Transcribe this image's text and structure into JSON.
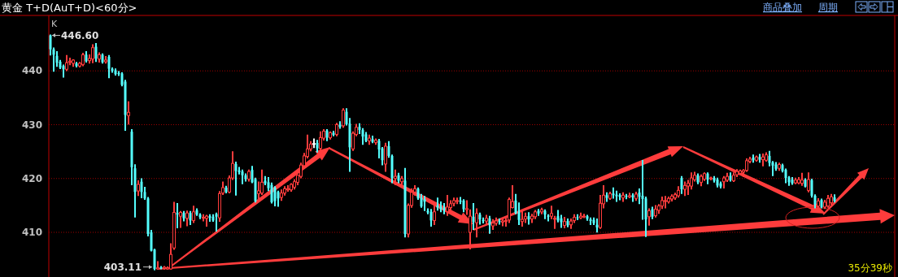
{
  "chart_data": {
    "type": "candlestick",
    "title": "黄金 T+D(AuT+D)<60分>",
    "colors": [
      "#54ffff",
      "#54ffff",
      "#54ffff",
      "#54ffff",
      "#54ffff",
      "#ff3c3c",
      "#ff3c3c",
      "#ff3c3c",
      "#54ffff",
      "#ff3c3c",
      "#ff3c3c",
      "#54ffff",
      "#ff3c3c",
      "#ff3c3c",
      "#54ffff",
      "#ff3c3c",
      "#54ffff",
      "#ff3c3c",
      "#54ffff",
      "#54ffff",
      "#54ffff",
      "#54ffff",
      "#54ffff",
      "#54ffff",
      "#ff3c3c",
      "#54ffff",
      "#54ffff",
      "#ff3c3c",
      "#54ffff",
      "#54ffff",
      "#54ffff",
      "#54ffff",
      "#54ffff",
      "#ff3c3c",
      "#54ffff",
      "#ff3c3c",
      "#ff3c3c",
      "#ff3c3c",
      "#ff3c3c",
      "#54ffff",
      "#ff3c3c",
      "#54ffff",
      "#ff3c3c",
      "#54ffff",
      "#ff3c3c",
      "#54ffff",
      "#54ffff",
      "#ff3c3c",
      "#ff3c3c",
      "#54ffff",
      "#54ffff",
      "#54ffff",
      "#ff3c3c",
      "#ff3c3c",
      "#54ffff",
      "#ff3c3c",
      "#ff3c3c",
      "#54ffff",
      "#54ffff",
      "#54ffff",
      "#54ffff",
      "#ff3c3c",
      "#54ffff",
      "#54ffff",
      "#ff3c3c",
      "#ff3c3c",
      "#54ffff",
      "#54ffff",
      "#54ffff",
      "#54ffff",
      "#54ffff",
      "#ff3c3c",
      "#ff3c3c",
      "#ff3c3c",
      "#ff3c3c",
      "#ff3c3c",
      "#ff3c3c",
      "#ff3c3c",
      "#ff3c3c",
      "#ff3c3c",
      "#ff3c3c",
      "#ffffff",
      "#54ffff",
      "#ff3c3c",
      "#ff3c3c",
      "#54ffff",
      "#ff3c3c",
      "#54ffff",
      "#ff3c3c",
      "#54ffff",
      "#ff3c3c",
      "#54ffff",
      "#54ffff",
      "#ff3c3c",
      "#ff3c3c",
      "#54ffff",
      "#54ffff",
      "#54ffff",
      "#ff3c3c",
      "#54ffff",
      "#ff3c3c",
      "#54ffff",
      "#54ffff",
      "#ff3c3c",
      "#54ffff",
      "#54ffff",
      "#ff3c3c",
      "#54ffff",
      "#ff3c3c",
      "#54ffff",
      "#ff3c3c",
      "#ff3c3c",
      "#ff3c3c",
      "#54ffff",
      "#54ffff",
      "#54ffff",
      "#54ffff",
      "#54ffff",
      "#ff3c3c",
      "#54ffff",
      "#54ffff",
      "#54ffff",
      "#ff3c3c",
      "#ff3c3c",
      "#ff3c3c",
      "#ff3c3c",
      "#54ffff",
      "#54ffff",
      "#ff3c3c",
      "#ff3c3c",
      "#54ffff",
      "#ff3c3c",
      "#54ffff",
      "#54ffff",
      "#ff3c3c",
      "#54ffff",
      "#ff3c3c",
      "#ff3c3c",
      "#54ffff",
      "#ff3c3c",
      "#ff3c3c",
      "#ff3c3c",
      "#ff3c3c",
      "#54ffff",
      "#54ffff",
      "#ff3c3c",
      "#ff3c3c",
      "#54ffff",
      "#ff3c3c",
      "#ff3c3c",
      "#54ffff",
      "#ff3c3c",
      "#54ffff",
      "#54ffff",
      "#ff3c3c",
      "#ff3c3c",
      "#54ffff",
      "#54ffff",
      "#ff3c3c",
      "#54ffff",
      "#ff3c3c",
      "#ff3c3c",
      "#54ffff",
      "#ff3c3c",
      "#ff3c3c",
      "#54ffff",
      "#54ffff",
      "#54ffff",
      "#54ffff",
      "#ff3c3c",
      "#ff3c3c",
      "#54ffff",
      "#ff3c3c",
      "#54ffff",
      "#54ffff",
      "#54ffff",
      "#ff3c3c",
      "#54ffff",
      "#ff3c3c",
      "#54ffff",
      "#ff3c3c",
      "#54ffff",
      "#54ffff",
      "#54ffff",
      "#ff3c3c",
      "#54ffff",
      "#ff3c3c",
      "#ff3c3c",
      "#ff3c3c",
      "#ff3c3c",
      "#ff3c3c",
      "#ff3c3c",
      "#ff3c3c",
      "#ff3c3c",
      "#54ffff",
      "#ff3c3c",
      "#ff3c3c",
      "#ff3c3c",
      "#ff3c3c",
      "#54ffff",
      "#ff3c3c",
      "#ff3c3c",
      "#54ffff",
      "#ff3c3c",
      "#54ffff",
      "#54ffff",
      "#54ffff",
      "#ff3c3c",
      "#ff3c3c",
      "#54ffff",
      "#ff3c3c",
      "#ff3c3c",
      "#ff3c3c",
      "#ff3c3c",
      "#ff3c3c",
      "#ff3c3c",
      "#54ffff",
      "#ff3c3c",
      "#54ffff",
      "#ff3c3c",
      "#ff3c3c",
      "#54ffff",
      "#54ffff",
      "#54ffff",
      "#ff3c3c",
      "#54ffff",
      "#54ffff",
      "#54ffff",
      "#54ffff",
      "#ff3c3c",
      "#ff3c3c",
      "#ff3c3c",
      "#54ffff",
      "#ff3c3c",
      "#54ffff",
      "#54ffff",
      "#ff3c3c",
      "#54ffff",
      "#ff3c3c",
      "#ff3c3c",
      "#ff3c3c",
      "#54ffff"
    ],
    "ylim": [
      401.7,
      450.3
    ],
    "yticks": [
      410,
      420,
      430,
      440
    ],
    "grid": "y",
    "annotations": [
      "K",
      "446.60",
      "403.11",
      "35分39秒",
      "商品叠加",
      "周期"
    ],
    "categories": [
      null,
      null,
      null,
      null,
      null,
      null,
      null,
      null,
      null,
      null,
      null,
      null,
      null,
      null,
      null,
      null,
      null,
      null,
      null,
      null,
      null,
      null,
      null,
      null,
      null,
      null,
      null,
      null,
      null,
      null,
      null,
      null,
      null,
      null,
      null,
      null,
      null,
      null,
      null,
      null,
      null,
      null,
      null,
      null,
      null,
      null,
      null,
      null,
      null,
      null,
      null,
      null,
      null,
      null,
      null,
      null,
      null,
      null,
      null,
      null,
      null,
      null,
      null,
      null,
      null,
      null,
      null,
      null,
      null,
      null,
      null,
      null,
      null,
      null,
      null,
      null,
      null,
      null,
      null,
      null,
      null,
      null,
      null,
      null,
      null,
      null,
      null,
      null,
      null,
      null,
      null,
      null,
      null,
      null,
      null,
      null,
      null,
      null,
      null,
      null,
      null,
      null,
      null,
      null,
      null,
      null,
      null,
      null,
      null,
      null,
      null,
      null,
      null,
      null,
      null,
      null,
      null,
      null,
      null,
      null,
      null,
      null,
      null,
      null,
      null,
      null,
      null,
      null,
      null,
      null,
      null,
      null,
      null,
      null,
      null,
      null,
      null,
      null,
      null,
      null,
      null,
      null,
      null,
      null,
      null,
      null,
      null,
      null,
      null,
      null,
      null,
      null,
      null,
      null,
      null,
      null,
      null,
      null,
      null,
      null,
      null,
      null,
      null,
      null,
      null,
      null,
      null,
      null,
      null,
      null,
      null,
      null,
      null,
      null,
      null,
      null,
      null,
      null,
      null,
      null,
      null,
      null,
      null,
      null,
      null,
      null,
      null,
      null,
      null,
      null,
      null,
      null,
      null,
      null,
      null,
      null,
      null,
      null,
      null,
      null,
      null,
      null,
      null,
      null,
      null,
      null,
      null,
      null,
      null,
      null,
      null,
      null,
      null,
      null,
      null,
      null,
      null,
      null,
      null,
      null,
      null,
      null,
      null,
      null,
      null,
      null,
      null,
      null,
      null,
      null,
      null,
      null,
      null,
      null,
      null,
      null,
      null,
      null,
      null,
      null,
      null,
      null
    ],
    "ohlc": [
      [
        446.6,
        446.6,
        443,
        444
      ],
      [
        444,
        444.2,
        440,
        443
      ],
      [
        442.8,
        443.5,
        440.9,
        441.5
      ],
      [
        441.7,
        441.9,
        440.5,
        440.6
      ],
      [
        440.9,
        441,
        438.9,
        440.3
      ],
      [
        440.3,
        442.8,
        440.1,
        441.5
      ],
      [
        441.6,
        442.3,
        441.2,
        441.8
      ],
      [
        441.4,
        442,
        440.9,
        442
      ],
      [
        441.4,
        441.5,
        440.8,
        440.9
      ],
      [
        440.9,
        441.5,
        440.8,
        441.4
      ],
      [
        441.2,
        443.2,
        441,
        443
      ],
      [
        443,
        443.5,
        441.7,
        441.8
      ],
      [
        441.9,
        442.9,
        441.5,
        442.3
      ],
      [
        442.2,
        444.8,
        441.6,
        444.3
      ],
      [
        444.5,
        445,
        441.8,
        442.3
      ],
      [
        442.2,
        443.3,
        441.7,
        443
      ],
      [
        443,
        443.1,
        441.5,
        441.6
      ],
      [
        441.7,
        442.6,
        441.5,
        442
      ],
      [
        442.6,
        442.8,
        438.8,
        440.4
      ],
      [
        440.4,
        440.5,
        439.8,
        440
      ],
      [
        440.1,
        440.3,
        439.3,
        439.4
      ],
      [
        439.6,
        439.8,
        439.2,
        439.4
      ],
      [
        439.5,
        439.6,
        437.3,
        437.4
      ],
      [
        438,
        438.2,
        429,
        431.8
      ],
      [
        431.7,
        434.2,
        430.2,
        432.3
      ],
      [
        428.7,
        429,
        418.9,
        422.1
      ],
      [
        421.9,
        422.5,
        412.9,
        417.5
      ],
      [
        417.7,
        419.5,
        416.9,
        418.9
      ],
      [
        419.4,
        419.9,
        416.5,
        417.5
      ],
      [
        417.5,
        418.3,
        416.2,
        416.3
      ],
      [
        416.3,
        416.4,
        409.4,
        409.7
      ],
      [
        410,
        410.3,
        406.6,
        406.6
      ],
      [
        406.8,
        406.8,
        403.11,
        403.2
      ],
      [
        403.2,
        404.5,
        403.2,
        403.4
      ],
      [
        403.5,
        403.6,
        403.3,
        403.3
      ],
      [
        403.3,
        403.6,
        403.2,
        403.5
      ],
      [
        403.2,
        403.5,
        403.2,
        403.4
      ],
      [
        403.2,
        407.8,
        403.2,
        405.9
      ],
      [
        407.1,
        415.5,
        406.9,
        413.7
      ],
      [
        413.6,
        415.3,
        410.9,
        413.3
      ],
      [
        413,
        413.8,
        411,
        413.7
      ],
      [
        413.6,
        413.8,
        412.2,
        412.6
      ],
      [
        412.6,
        413.9,
        411.3,
        413.6
      ],
      [
        413.6,
        413.8,
        411.5,
        412.2
      ],
      [
        412.2,
        414.8,
        411.9,
        413.8
      ],
      [
        414.1,
        414.3,
        413.2,
        413.3
      ],
      [
        413.3,
        413.4,
        412.6,
        412.8
      ],
      [
        412.8,
        413.2,
        412.2,
        412.8
      ],
      [
        412.6,
        413.1,
        411.2,
        413
      ],
      [
        413,
        413.2,
        412.1,
        412.7
      ],
      [
        412.9,
        413.2,
        412.1,
        412.2
      ],
      [
        413.4,
        413.5,
        410.3,
        412.9
      ],
      [
        412.7,
        417.5,
        412.1,
        417.2
      ],
      [
        417.3,
        419.3,
        417.1,
        418.3
      ],
      [
        418.3,
        418.5,
        417.4,
        417.5
      ],
      [
        417.5,
        420.4,
        417.4,
        420.1
      ],
      [
        420.1,
        424.9,
        419.9,
        422.8
      ],
      [
        422.7,
        423,
        417,
        421.4
      ],
      [
        421.5,
        422,
        420.9,
        421.2
      ],
      [
        421.3,
        421.5,
        419.1,
        420.6
      ],
      [
        420.6,
        420.8,
        419.6,
        419.9
      ],
      [
        419.9,
        421.5,
        419.6,
        421.3
      ],
      [
        421.6,
        422.2,
        419.3,
        419.3
      ],
      [
        419.9,
        420,
        415.7,
        415.8
      ],
      [
        417.2,
        419.3,
        416.2,
        417.7
      ],
      [
        417.3,
        421.5,
        417.1,
        419.3
      ],
      [
        419.6,
        420.3,
        418.9,
        419.1
      ],
      [
        419.3,
        420.1,
        417.8,
        418.2
      ],
      [
        418.8,
        419.1,
        415.5,
        415.6
      ],
      [
        418.3,
        418.4,
        415,
        415.8
      ],
      [
        417.5,
        417.6,
        414.9,
        416.3
      ],
      [
        416.5,
        417.8,
        416,
        417.3
      ],
      [
        417.3,
        418.4,
        417,
        418.1
      ],
      [
        417.9,
        418.6,
        417.7,
        418.1
      ],
      [
        417.9,
        419,
        417.7,
        418.9
      ],
      [
        418.4,
        419.7,
        418.1,
        419.4
      ],
      [
        419.3,
        420.6,
        418.9,
        420.6
      ],
      [
        420.4,
        422.8,
        420.2,
        422.5
      ],
      [
        422.4,
        424.6,
        422.2,
        424.2
      ],
      [
        424.1,
        428,
        423.9,
        425.5
      ],
      [
        425.5,
        426.8,
        425.2,
        426.4
      ],
      [
        426.5,
        427.3,
        425.8,
        426.5
      ],
      [
        426.6,
        427,
        425,
        425.6
      ],
      [
        425.6,
        428.6,
        425.3,
        427.6
      ],
      [
        427.5,
        429,
        427.2,
        428.8
      ],
      [
        428.9,
        429,
        427.1,
        427.6
      ],
      [
        427.6,
        428.6,
        427.4,
        428.5
      ],
      [
        428.5,
        428.7,
        428,
        428.1
      ],
      [
        428.2,
        430.2,
        428,
        430
      ],
      [
        430,
        430.5,
        429.4,
        429.6
      ],
      [
        429.8,
        432.9,
        429.6,
        432.7
      ],
      [
        432.4,
        432.9,
        430,
        430.1
      ],
      [
        430.2,
        431.1,
        421.4,
        425.8
      ],
      [
        425.5,
        428.6,
        425.3,
        428.4
      ],
      [
        428.2,
        430,
        428,
        429.5
      ],
      [
        429.6,
        430.1,
        428.4,
        429
      ],
      [
        429,
        429.2,
        426.4,
        427.8
      ],
      [
        428.2,
        428.5,
        426.9,
        427
      ],
      [
        427,
        428,
        426.4,
        427.5
      ],
      [
        427.3,
        427.8,
        426.7,
        426.8
      ],
      [
        426.7,
        427.3,
        426.4,
        427.1
      ],
      [
        427,
        427.2,
        423.9,
        425.4
      ],
      [
        425.6,
        425.7,
        422.6,
        423.4
      ],
      [
        422.7,
        426.5,
        421.4,
        426
      ],
      [
        426,
        426.8,
        424,
        424.2
      ],
      [
        424.2,
        424.3,
        419.3,
        420.1
      ],
      [
        420,
        421.5,
        418.9,
        420.4
      ],
      [
        420.6,
        420.9,
        419.3,
        419.6
      ],
      [
        419.4,
        420.3,
        418.5,
        420
      ],
      [
        419.6,
        421.8,
        409.2,
        409.7
      ],
      [
        409.7,
        415.2,
        409.2,
        415
      ],
      [
        415,
        418,
        414.7,
        417.4
      ],
      [
        417.5,
        418.6,
        417,
        418.1
      ],
      [
        418.1,
        418.2,
        416.2,
        416.3
      ],
      [
        416.4,
        417,
        414.7,
        414.8
      ],
      [
        416.1,
        416.6,
        414.1,
        415.7
      ],
      [
        414,
        414.3,
        413.5,
        413.7
      ],
      [
        413.8,
        414.2,
        411.2,
        412.2
      ],
      [
        412.2,
        415.3,
        411.5,
        413.8
      ],
      [
        415,
        416.3,
        414.2,
        414.6
      ],
      [
        414.7,
        415.6,
        413.9,
        414.3
      ],
      [
        414.5,
        415.3,
        413.5,
        414.1
      ],
      [
        413.9,
        416.8,
        413.2,
        414.7
      ],
      [
        414.6,
        415.8,
        414.1,
        415.3
      ],
      [
        415.4,
        416.3,
        415,
        415.9
      ],
      [
        415.8,
        416.3,
        415.4,
        415.9
      ],
      [
        415.9,
        416.4,
        415.4,
        415.7
      ],
      [
        415.9,
        416,
        413.9,
        414.3
      ],
      [
        414.2,
        415.8,
        413.4,
        414.4
      ],
      [
        410,
        414.1,
        407,
        413
      ],
      [
        412.9,
        415.3,
        410.6,
        411.9
      ],
      [
        411.8,
        414.3,
        409.2,
        413.5
      ],
      [
        413.3,
        413.5,
        411.6,
        412.4
      ],
      [
        412.3,
        412.6,
        411.8,
        412.1
      ],
      [
        412.1,
        413.1,
        411.6,
        412.6
      ],
      [
        412.6,
        412.9,
        409.9,
        411.3
      ],
      [
        411.2,
        412.3,
        410.6,
        411.7
      ],
      [
        411.7,
        412.6,
        411.4,
        412.1
      ],
      [
        412.1,
        412.4,
        411.6,
        411.9
      ],
      [
        411.9,
        412.4,
        411.3,
        412.1
      ],
      [
        412.1,
        412.7,
        411.2,
        412.2
      ],
      [
        412.3,
        416.3,
        411.9,
        416.1
      ],
      [
        414.6,
        418.6,
        414.6,
        415.7
      ],
      [
        415.9,
        417,
        413.5,
        413.6
      ],
      [
        413.7,
        415.4,
        411.5,
        412.3
      ],
      [
        412,
        413.8,
        411.2,
        412.4
      ],
      [
        412.5,
        413.5,
        411.9,
        412.9
      ],
      [
        413,
        413.6,
        411.6,
        412.4
      ],
      [
        412.5,
        413.3,
        411.9,
        413
      ],
      [
        412.9,
        414,
        412.6,
        413.8
      ],
      [
        414,
        414.2,
        413.2,
        413.5
      ],
      [
        413.8,
        414.4,
        413.5,
        414.2
      ],
      [
        414,
        414.1,
        412.6,
        413.3
      ],
      [
        413.1,
        413.2,
        412.2,
        412.9
      ],
      [
        413,
        414.8,
        412.6,
        413.5
      ],
      [
        412.6,
        412.9,
        410.8,
        412.6
      ],
      [
        413,
        414,
        412,
        412.2
      ],
      [
        412.6,
        413.1,
        411,
        411.9
      ],
      [
        411.3,
        412.7,
        410.9,
        412
      ],
      [
        412.1,
        412.4,
        411.1,
        411.3
      ],
      [
        411.4,
        412.4,
        410.8,
        412.1
      ],
      [
        412.2,
        413.2,
        411.9,
        412.8
      ],
      [
        412.8,
        413.2,
        412.4,
        412.7
      ],
      [
        412.7,
        413.5,
        412.6,
        413
      ],
      [
        412.9,
        413.3,
        412.8,
        413
      ],
      [
        413,
        413.1,
        412.3,
        412.5
      ],
      [
        412.4,
        412.6,
        411.5,
        412.1
      ],
      [
        412.3,
        412.6,
        411.5,
        411.7
      ],
      [
        411.4,
        412.4,
        410.1,
        410.9
      ],
      [
        410.9,
        416.8,
        410.8,
        415.4
      ],
      [
        415.3,
        418.6,
        414.6,
        416.9
      ],
      [
        416.9,
        417.3,
        415.8,
        416.4
      ],
      [
        416.3,
        417.4,
        416.2,
        417.2
      ],
      [
        417.2,
        418.2,
        416.4,
        416.9
      ],
      [
        417,
        417.6,
        415.8,
        416.7
      ],
      [
        416.9,
        417.1,
        416.1,
        416.6
      ],
      [
        416.4,
        417.3,
        415.8,
        416.9
      ],
      [
        416.8,
        417,
        416.3,
        416.6
      ],
      [
        416.6,
        417.2,
        416.5,
        416.8
      ],
      [
        416.9,
        417.1,
        415.8,
        416.5
      ],
      [
        416.3,
        417.4,
        416,
        417.1
      ],
      [
        417.4,
        418,
        415.4,
        416.6
      ],
      [
        416.8,
        423.3,
        412.5,
        416.2
      ],
      [
        416.3,
        416.5,
        409.3,
        412.4
      ],
      [
        412.9,
        414.3,
        411.4,
        414
      ],
      [
        414.3,
        414.6,
        412.6,
        412.9
      ],
      [
        413.1,
        414.9,
        412.9,
        414.3
      ],
      [
        414.1,
        415.1,
        413.6,
        414.9
      ],
      [
        414.9,
        416.5,
        414.5,
        415.9
      ],
      [
        415.9,
        416.6,
        414.6,
        415.9
      ],
      [
        415.7,
        416.5,
        415.5,
        416.3
      ],
      [
        416.2,
        416.9,
        415.9,
        416.7
      ],
      [
        416.4,
        417.2,
        416.2,
        417
      ],
      [
        416.8,
        418.4,
        416.6,
        417.8
      ],
      [
        420.1,
        420.3,
        417.3,
        418
      ],
      [
        418,
        419.3,
        416.9,
        418.7
      ],
      [
        418.6,
        419.6,
        417.1,
        419.1
      ],
      [
        418.6,
        421,
        418.1,
        420.1
      ],
      [
        419.8,
        421.1,
        419.6,
        420.6
      ],
      [
        420.6,
        420.8,
        419.1,
        419.3
      ],
      [
        419.3,
        420.6,
        418.7,
        420.4
      ],
      [
        419.9,
        421,
        419.7,
        420.9
      ],
      [
        420.9,
        421,
        419.1,
        419.8
      ],
      [
        420,
        420.2,
        419.8,
        420.1
      ],
      [
        420.1,
        420.3,
        419.4,
        419.6
      ],
      [
        419.8,
        420,
        418.5,
        418.7
      ],
      [
        419.1,
        419.3,
        418.3,
        418.5
      ],
      [
        419.4,
        420.3,
        418.3,
        420.1
      ],
      [
        419.7,
        420.9,
        419.5,
        420.4
      ],
      [
        420.5,
        421,
        419.6,
        419.7
      ],
      [
        419.6,
        421,
        419.5,
        420.6
      ],
      [
        420.7,
        421.6,
        420.4,
        421.3
      ],
      [
        421,
        421.5,
        420.8,
        421.4
      ],
      [
        421.2,
        421.6,
        420.4,
        421.5
      ],
      [
        421.5,
        423.6,
        421.4,
        423.3
      ],
      [
        423.2,
        423.9,
        423,
        423.6
      ],
      [
        423.9,
        424.3,
        423.1,
        423.4
      ],
      [
        423.4,
        424.1,
        423.3,
        424
      ],
      [
        424,
        424.4,
        423.1,
        423.5
      ],
      [
        423.5,
        424.5,
        422.4,
        424
      ],
      [
        423.4,
        424.7,
        423.3,
        424.4
      ],
      [
        424.2,
        425,
        422.4,
        422.9
      ],
      [
        423,
        423.1,
        420.6,
        422.4
      ],
      [
        422.6,
        422.9,
        421.6,
        421.8
      ],
      [
        421.9,
        422.8,
        421.6,
        422.6
      ],
      [
        422.5,
        422.6,
        421.3,
        421.4
      ],
      [
        421.6,
        421.7,
        419.3,
        420.1
      ],
      [
        420.2,
        420.3,
        418.8,
        419.3
      ],
      [
        419.8,
        420.1,
        419,
        419.1
      ],
      [
        419.2,
        420,
        419.1,
        419.7
      ],
      [
        419.2,
        420.1,
        419.1,
        419.8
      ],
      [
        419.1,
        420.9,
        418.8,
        419.7
      ],
      [
        419.8,
        419.9,
        418.5,
        418.5
      ],
      [
        417.8,
        421,
        417.6,
        419.8
      ],
      [
        419.7,
        419.8,
        416.6,
        416.8
      ],
      [
        416.8,
        416.9,
        414.6,
        415.2
      ],
      [
        414.9,
        416.2,
        414.5,
        415.8
      ],
      [
        416,
        416.1,
        414.6,
        414.7
      ],
      [
        414.7,
        415.9,
        414.5,
        415.6
      ],
      [
        414.9,
        416.8,
        414.7,
        416.3
      ],
      [
        415.5,
        417,
        415.3,
        416.6
      ],
      [
        416.5,
        416.9,
        415.7,
        415.8
      ]
    ]
  }
}
